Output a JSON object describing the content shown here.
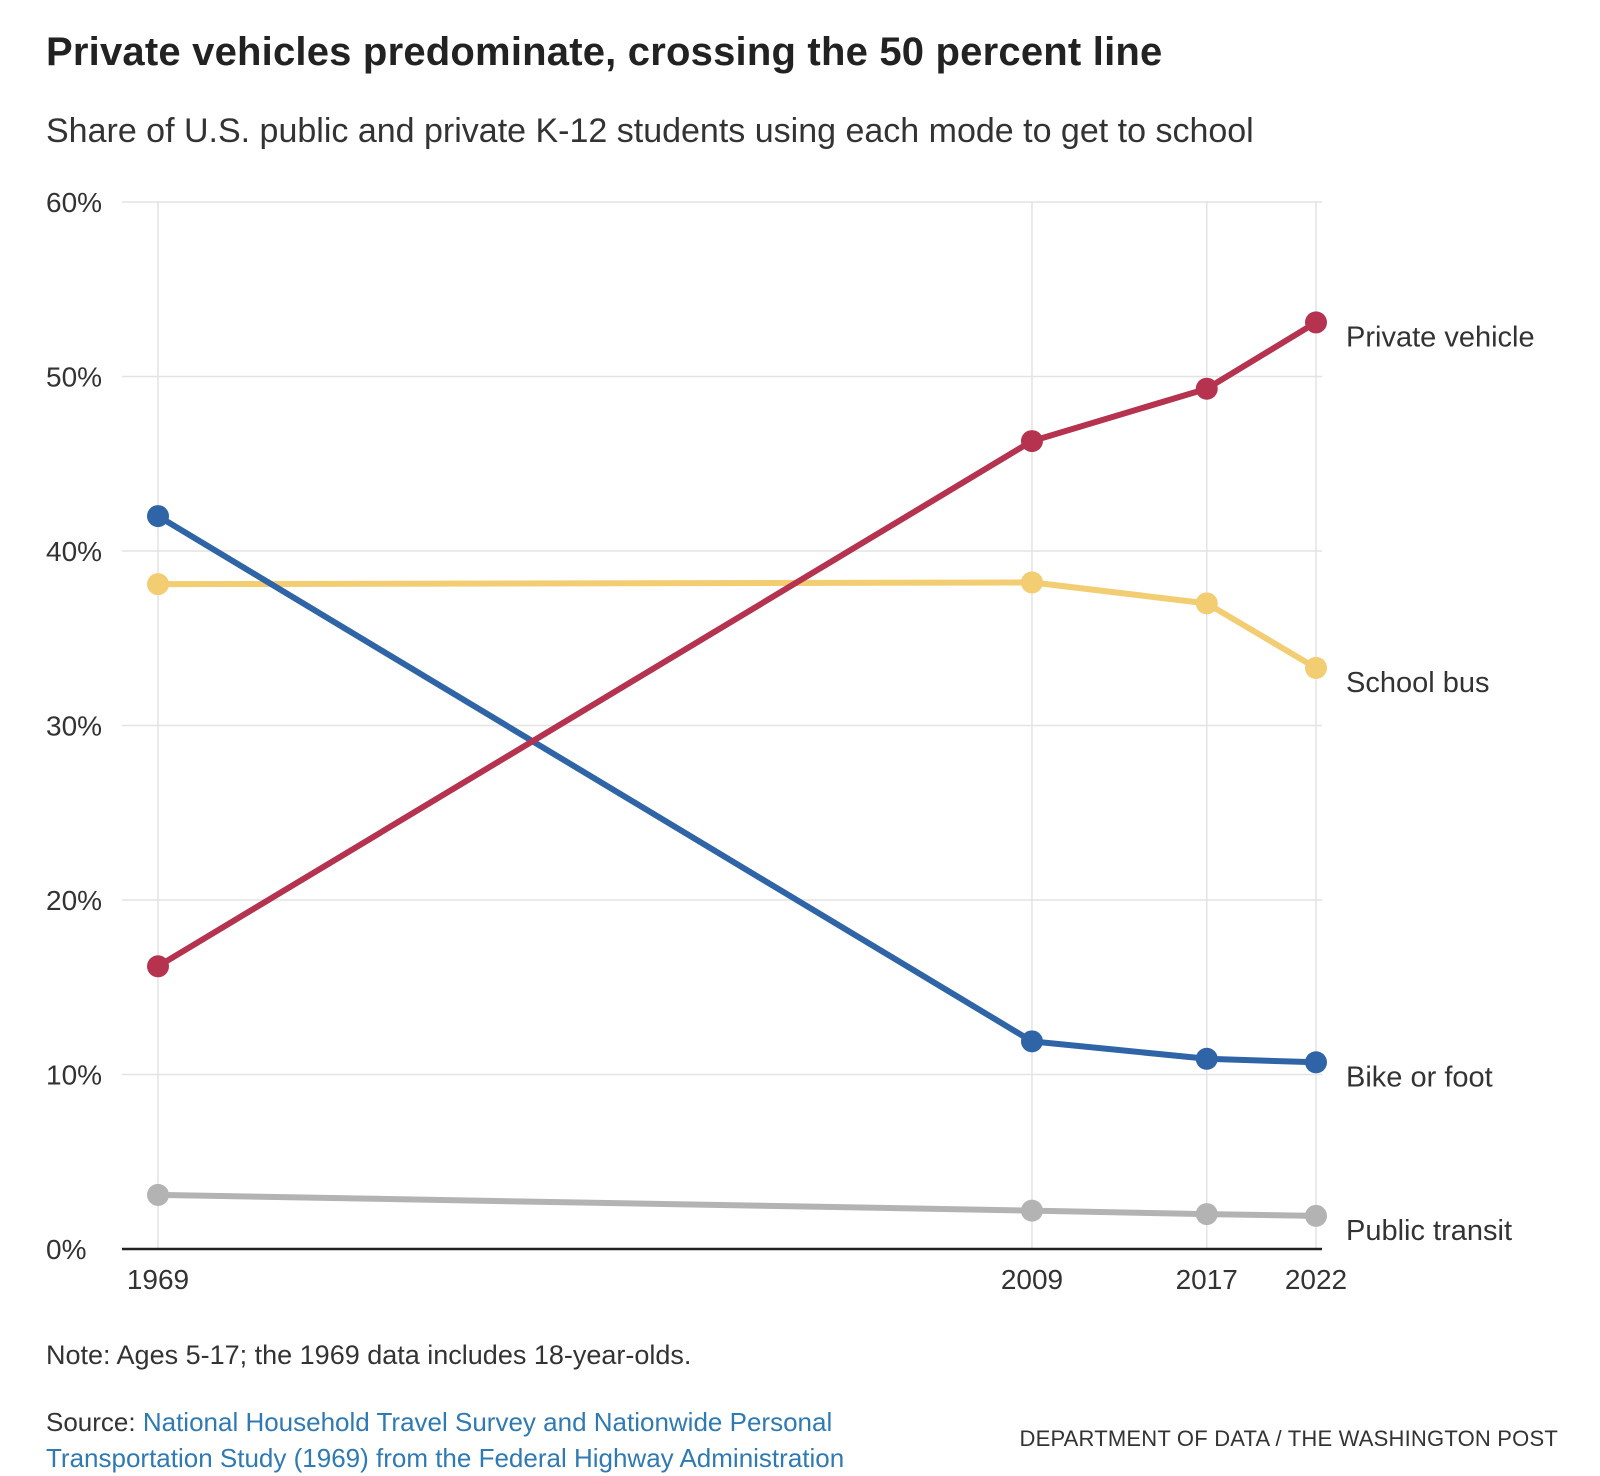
{
  "header": {
    "title": "Private vehicles predominate, crossing the 50 percent line",
    "subtitle": "Share of U.S. public and private K-12 students using each mode to get to school"
  },
  "footer": {
    "note": "Note: Ages 5-17; the 1969 data includes 18-year-olds.",
    "source_label": "Source: ",
    "source_link": "National Household Travel Survey and Nationwide Personal Transportation Study (1969) from the Federal Highway Administration",
    "credit": "DEPARTMENT OF DATA / THE WASHINGTON POST"
  },
  "chart_data": {
    "type": "line",
    "x": [
      1969,
      2009,
      2017,
      2022
    ],
    "x_tick_labels": [
      "1969",
      "2009",
      "2017",
      "2022"
    ],
    "ylim": [
      0,
      60
    ],
    "y_ticks": [
      0,
      10,
      20,
      30,
      40,
      50,
      60
    ],
    "y_tick_labels": [
      "0%",
      "10%",
      "20%",
      "30%",
      "40%",
      "50%",
      "60%"
    ],
    "grid": true,
    "legend": "direct labels at line ends",
    "series": [
      {
        "name": "Private vehicle",
        "color": "#b5334f",
        "values": [
          16.2,
          46.3,
          49.3,
          53.1
        ]
      },
      {
        "name": "School bus",
        "color": "#f2cd72",
        "values": [
          38.1,
          38.2,
          37.0,
          33.3
        ]
      },
      {
        "name": "Bike or foot",
        "color": "#2f64a6",
        "values": [
          42.0,
          11.9,
          10.9,
          10.7
        ]
      },
      {
        "name": "Public transit",
        "color": "#b3b3b3",
        "values": [
          3.1,
          2.2,
          2.0,
          1.9
        ]
      }
    ]
  }
}
